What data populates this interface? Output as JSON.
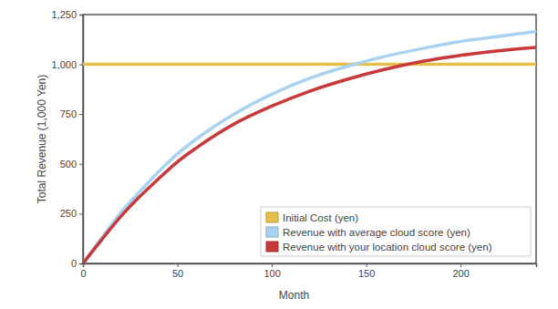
{
  "chart_data": {
    "type": "line",
    "x_label": "Month",
    "y_label": "Total Revenue (1,000 Yen)",
    "x": [
      0,
      10,
      20,
      30,
      40,
      50,
      60,
      80,
      100,
      120,
      140,
      160,
      180,
      200,
      220,
      240
    ],
    "series": [
      {
        "name": "Initial Cost (yen)",
        "color": "#e6c04a",
        "values": [
          1000,
          1000,
          1000,
          1000,
          1000,
          1000,
          1000,
          1000,
          1000,
          1000,
          1000,
          1000,
          1000,
          1000,
          1000,
          1000
        ]
      },
      {
        "name": "Revenue with average cloud score (yen)",
        "color": "#a8d2ef",
        "values": [
          0,
          130,
          255,
          360,
          460,
          550,
          625,
          750,
          850,
          930,
          990,
          1040,
          1080,
          1115,
          1140,
          1165
        ]
      },
      {
        "name": "Revenue with your location cloud score (yen)",
        "color": "#c8393b",
        "values": [
          0,
          120,
          235,
          335,
          425,
          510,
          580,
          700,
          790,
          865,
          925,
          975,
          1015,
          1045,
          1068,
          1085
        ]
      }
    ],
    "xlim": [
      0,
      240
    ],
    "ylim": [
      0,
      1250
    ],
    "xticks": [
      0,
      50,
      100,
      150,
      200
    ],
    "yticks": [
      0,
      250,
      500,
      750,
      {
        "value": 1000,
        "label": "1,000"
      },
      {
        "value": 1250,
        "label": "1,250"
      }
    ],
    "grid": false,
    "legend": "lower right"
  }
}
